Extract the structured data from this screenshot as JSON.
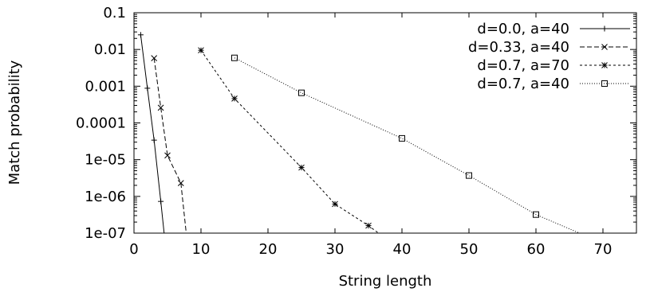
{
  "chart_data": {
    "type": "line",
    "title": "",
    "xlabel": "String length",
    "ylabel": "Match probability",
    "xlim": [
      0,
      75
    ],
    "ylim": [
      1e-07,
      0.1
    ],
    "yscale": "log",
    "grid": false,
    "legend_position": "top-right",
    "x_ticks": [
      0,
      10,
      20,
      30,
      40,
      50,
      60,
      70
    ],
    "x_tick_labels": [
      "0",
      "10",
      "20",
      "30",
      "40",
      "50",
      "60",
      "70"
    ],
    "y_ticks": [
      1e-07,
      1e-06,
      1e-05,
      0.0001,
      0.001,
      0.01,
      0.1
    ],
    "y_tick_labels": [
      "1e-07",
      "1e-06",
      "1e-05",
      "0.0001",
      "0.001",
      "0.01",
      "0.1"
    ],
    "series": [
      {
        "name": "d=0.0, a=40",
        "marker": "plus",
        "dash": "",
        "x": [
          1,
          2,
          3,
          4,
          4.5
        ],
        "y": [
          0.025,
          0.00088,
          3.4e-05,
          7.3e-07,
          1e-07
        ]
      },
      {
        "name": "d=0.33, a=40",
        "marker": "cross",
        "dash": "6,3",
        "x": [
          3,
          4,
          5,
          7,
          7.8
        ],
        "y": [
          0.0058,
          0.00026,
          1.3e-05,
          2.3e-06,
          1e-07
        ]
      },
      {
        "name": "d=0.7, a=70",
        "marker": "star",
        "dash": "3,3",
        "x": [
          10,
          15,
          25,
          30,
          35,
          36.5
        ],
        "y": [
          0.0095,
          0.00046,
          6.1e-06,
          6.2e-07,
          1.6e-07,
          1e-07
        ]
      },
      {
        "name": "d=0.7, a=40",
        "marker": "square",
        "dash": "1,2",
        "x": [
          15,
          25,
          40,
          50,
          60,
          66.5
        ],
        "y": [
          0.0059,
          0.00066,
          3.8e-05,
          3.7e-06,
          3.2e-07,
          1e-07
        ]
      }
    ]
  }
}
